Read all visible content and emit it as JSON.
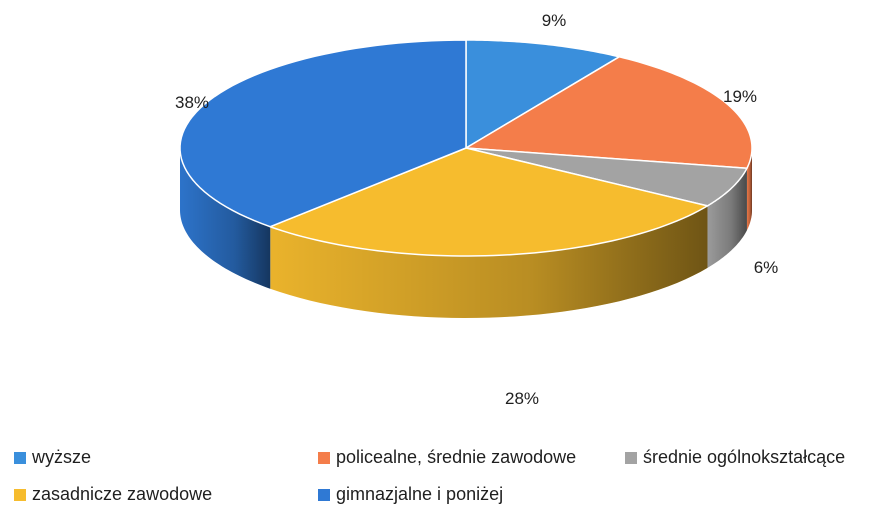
{
  "chart_data": {
    "type": "pie",
    "title": "",
    "labels": [
      "wyższe",
      "policealne, średnie zawodowe",
      "średnie ogólnokształcące",
      "zasadnicze zawodowe",
      "gimnazjalne i poniżej"
    ],
    "values": [
      9,
      19,
      6,
      28,
      38
    ],
    "value_labels": [
      "9%",
      "19%",
      "6%",
      "28%",
      "38%"
    ],
    "colors": [
      "#3a8fdc",
      "#f47d4a",
      "#a3a3a3",
      "#f6bc2e",
      "#2f79d4"
    ],
    "legend_position": "bottom",
    "style": "3d"
  }
}
